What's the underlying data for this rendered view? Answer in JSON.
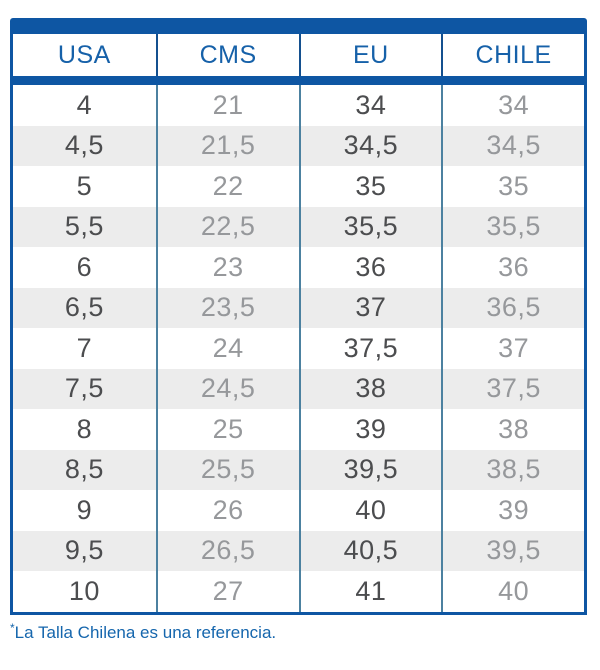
{
  "colors": {
    "primary": "#0e56a3",
    "header_text": "#1661a9",
    "divider_header": "#14508f",
    "divider_data": "#4c81a0",
    "stripe": "#ececec",
    "dark_text": "#4c4d4f",
    "light_text": "#96989b",
    "footnote_text": "#1566ad",
    "bg": "#ffffff"
  },
  "table": {
    "columns": [
      {
        "key": "usa",
        "label": "USA",
        "emphasis": "dark"
      },
      {
        "key": "cms",
        "label": "CMS",
        "emphasis": "light"
      },
      {
        "key": "eu",
        "label": "EU",
        "emphasis": "dark"
      },
      {
        "key": "chile",
        "label": "CHILE",
        "emphasis": "light"
      }
    ],
    "rows": [
      [
        "4",
        "21",
        "34",
        "34"
      ],
      [
        "4,5",
        "21,5",
        "34,5",
        "34,5"
      ],
      [
        "5",
        "22",
        "35",
        "35"
      ],
      [
        "5,5",
        "22,5",
        "35,5",
        "35,5"
      ],
      [
        "6",
        "23",
        "36",
        "36"
      ],
      [
        "6,5",
        "23,5",
        "37",
        "36,5"
      ],
      [
        "7",
        "24",
        "37,5",
        "37"
      ],
      [
        "7,5",
        "24,5",
        "38",
        "37,5"
      ],
      [
        "8",
        "25",
        "39",
        "38"
      ],
      [
        "8,5",
        "25,5",
        "39,5",
        "38,5"
      ],
      [
        "9",
        "26",
        "40",
        "39"
      ],
      [
        "9,5",
        "26,5",
        "40,5",
        "39,5"
      ],
      [
        "10",
        "27",
        "41",
        "40"
      ]
    ]
  },
  "footnote": {
    "asterisk": "*",
    "text": "La Talla Chilena es una referencia."
  }
}
